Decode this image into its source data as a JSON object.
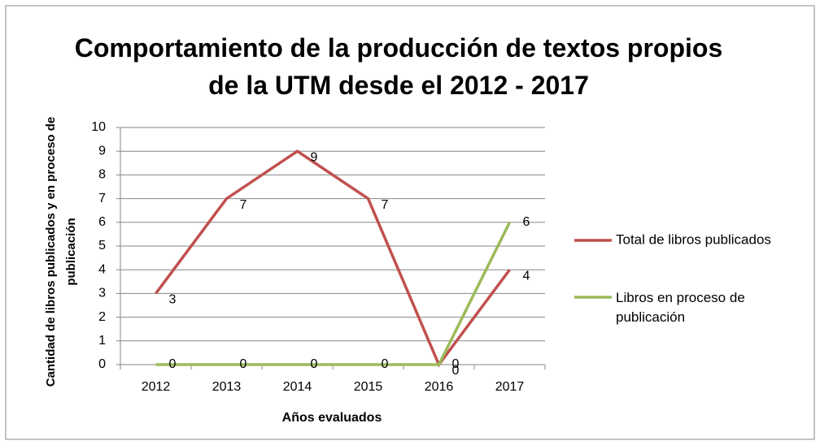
{
  "chart_data": {
    "type": "line",
    "title": "Comportamiento de la producción de textos propios de la UTM desde el 2012 - 2017",
    "x_label": "Años evaluados",
    "y_label": "Cantidad de libros publicados y en proceso de publicación",
    "categories": [
      "2012",
      "2013",
      "2014",
      "2015",
      "2016",
      "2017"
    ],
    "series": [
      {
        "name": "Total de libros publicados",
        "color": "#c0504d",
        "values": [
          3,
          7,
          9,
          7,
          0,
          4
        ]
      },
      {
        "name": "Libros en proceso de publicación",
        "color": "#9bbb59",
        "values": [
          0,
          0,
          0,
          0,
          0,
          6
        ]
      }
    ],
    "ylim": [
      0,
      10
    ],
    "yticks": [
      0,
      1,
      2,
      3,
      4,
      5,
      6,
      7,
      8,
      9,
      10
    ],
    "grid": true,
    "legend": "right"
  }
}
